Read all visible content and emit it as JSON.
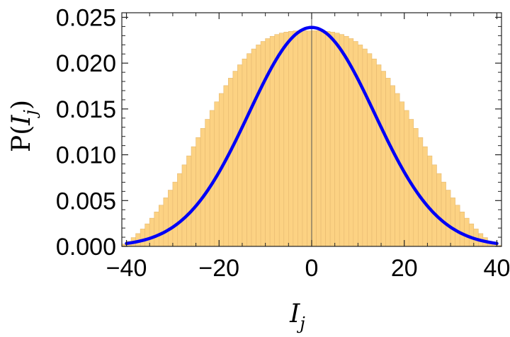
{
  "chart_data": {
    "type": "bar",
    "title": "",
    "xlabel": "I",
    "xlabel_sub": "j",
    "ylabel_prefix": "P(",
    "ylabel_var": "I",
    "ylabel_sub": "j",
    "ylabel_suffix": ")",
    "xlim": [
      -41,
      41
    ],
    "ylim": [
      0,
      0.0255
    ],
    "xticks": [
      -40,
      -20,
      0,
      20,
      40
    ],
    "xtick_labels": [
      "−40",
      "−20",
      "0",
      "20",
      "40"
    ],
    "yticks": [
      0,
      0.005,
      0.01,
      0.015,
      0.02,
      0.025
    ],
    "ytick_labels": [
      "0.000",
      "0.005",
      "0.010",
      "0.015",
      "0.020",
      "0.025"
    ],
    "grid": false,
    "legend": "none",
    "histogram": {
      "name": "",
      "color": "#FCD283",
      "edge_color": "#E6B970",
      "bin_width": 1,
      "bin_range": [
        -41,
        41
      ],
      "description_values": "probability density per unit bin, bins from -41 to 41",
      "values": [
        0.00026,
        0.00057,
        0.00096,
        0.0014,
        0.0019,
        0.00246,
        0.00308,
        0.00376,
        0.0045,
        0.0053,
        0.00614,
        0.00702,
        0.00795,
        0.0089,
        0.00988,
        0.01088,
        0.01188,
        0.01288,
        0.01387,
        0.01484,
        0.01578,
        0.01669,
        0.01755,
        0.01836,
        0.01912,
        0.01982,
        0.02046,
        0.02104,
        0.02155,
        0.02199,
        0.02237,
        0.02268,
        0.02293,
        0.02313,
        0.02328,
        0.02339,
        0.02347,
        0.02352,
        0.02354,
        0.02354,
        0.02352,
        0.02354,
        0.02354,
        0.02352,
        0.02347,
        0.02339,
        0.02328,
        0.02313,
        0.02293,
        0.02268,
        0.02237,
        0.02199,
        0.02155,
        0.02104,
        0.02046,
        0.01982,
        0.01912,
        0.01836,
        0.01755,
        0.01669,
        0.01578,
        0.01484,
        0.01387,
        0.01288,
        0.01188,
        0.01088,
        0.00988,
        0.0089,
        0.00795,
        0.00702,
        0.00614,
        0.0053,
        0.0045,
        0.00376,
        0.00308,
        0.00246,
        0.0019,
        0.0014,
        0.00096,
        0.00057,
        0.00026,
        0.0001
      ]
    },
    "curve": {
      "name": "",
      "color": "#0000F5",
      "x": [
        -40,
        -38,
        -36,
        -34,
        -32,
        -30,
        -28,
        -26,
        -24,
        -22,
        -20,
        -18,
        -16,
        -14,
        -12,
        -10,
        -8,
        -6,
        -4,
        -2,
        0,
        2,
        4,
        6,
        8,
        10,
        12,
        14,
        16,
        18,
        20,
        22,
        24,
        26,
        28,
        30,
        32,
        34,
        36,
        38,
        40
      ],
      "y": [
        0.00012,
        0.0003,
        0.0006,
        0.00104,
        0.00165,
        0.00245,
        0.00343,
        0.00458,
        0.00588,
        0.0073,
        0.00882,
        0.0104,
        0.012,
        0.01358,
        0.0151,
        0.01652,
        0.0178,
        0.01892,
        0.01983,
        0.0205,
        0.0239,
        0.0205,
        0.01983,
        0.01892,
        0.0178,
        0.01652,
        0.0151,
        0.01358,
        0.012,
        0.0104,
        0.00882,
        0.0073,
        0.00588,
        0.00458,
        0.00343,
        0.00245,
        0.00165,
        0.00104,
        0.0006,
        0.0003,
        0.00012
      ]
    },
    "reference_line_x": 0
  }
}
